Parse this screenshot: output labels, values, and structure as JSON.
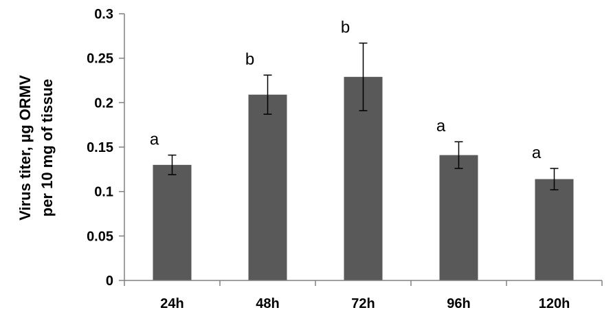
{
  "chart_data": {
    "type": "bar",
    "title": "",
    "xlabel": "",
    "ylabel_lines": [
      "Virus titer, µg ORMV",
      "per 10 mg of tissue"
    ],
    "categories": [
      "24h",
      "48h",
      "72h",
      "96h",
      "120h"
    ],
    "values": [
      0.13,
      0.209,
      0.229,
      0.141,
      0.114
    ],
    "errors": [
      0.011,
      0.022,
      0.038,
      0.015,
      0.012
    ],
    "significance": [
      "a",
      "b",
      "b",
      "a",
      "a"
    ],
    "ylim": [
      0,
      0.3
    ],
    "yticks": [
      0,
      0.05,
      0.1,
      0.15,
      0.2,
      0.25,
      0.3
    ],
    "ytick_labels": [
      "0",
      "0.05",
      "0.1",
      "0.15",
      "0.2",
      "0.25",
      "0.3"
    ],
    "grid": false,
    "legend": "none",
    "colors": {
      "bar": "#595959",
      "axis": "#808080",
      "error": "#000000"
    }
  }
}
